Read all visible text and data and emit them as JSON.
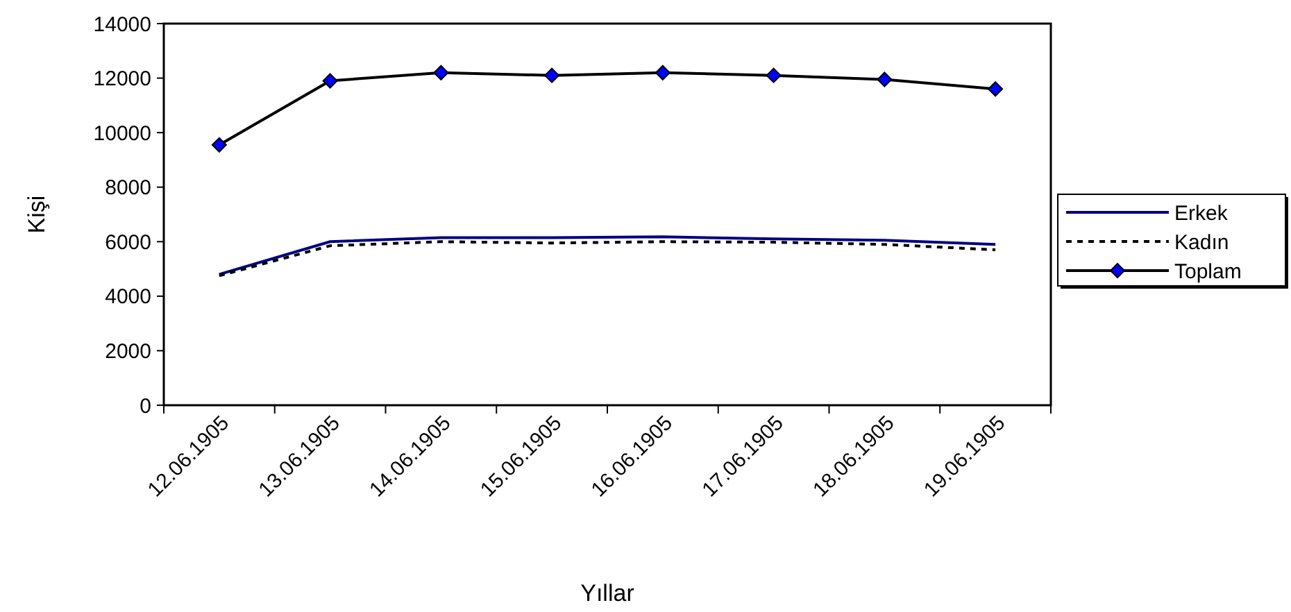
{
  "chart_data": {
    "type": "line",
    "xlabel": "Yıllar",
    "ylabel": "Kişi",
    "categories": [
      "12.06.1905",
      "13.06.1905",
      "14.06.1905",
      "15.06.1905",
      "16.06.1905",
      "17.06.1905",
      "18.06.1905",
      "19.06.1905"
    ],
    "series": [
      {
        "name": "Erkek",
        "color": "#000080",
        "line_style": "solid",
        "marker": "none",
        "values": [
          4800,
          6000,
          6150,
          6150,
          6180,
          6100,
          6050,
          5900
        ]
      },
      {
        "name": "Kadın",
        "color": "#000000",
        "line_style": "dashed",
        "marker": "none",
        "values": [
          4750,
          5850,
          6000,
          5950,
          6000,
          5980,
          5900,
          5700
        ]
      },
      {
        "name": "Toplam",
        "color": "#000000",
        "line_style": "solid",
        "marker": "diamond",
        "values": [
          9550,
          11900,
          12200,
          12100,
          12200,
          12100,
          11950,
          11600
        ]
      }
    ],
    "ylim": [
      0,
      14000
    ],
    "yticks": [
      0,
      2000,
      4000,
      6000,
      8000,
      10000,
      12000,
      14000
    ],
    "grid": false,
    "legend": "right"
  }
}
